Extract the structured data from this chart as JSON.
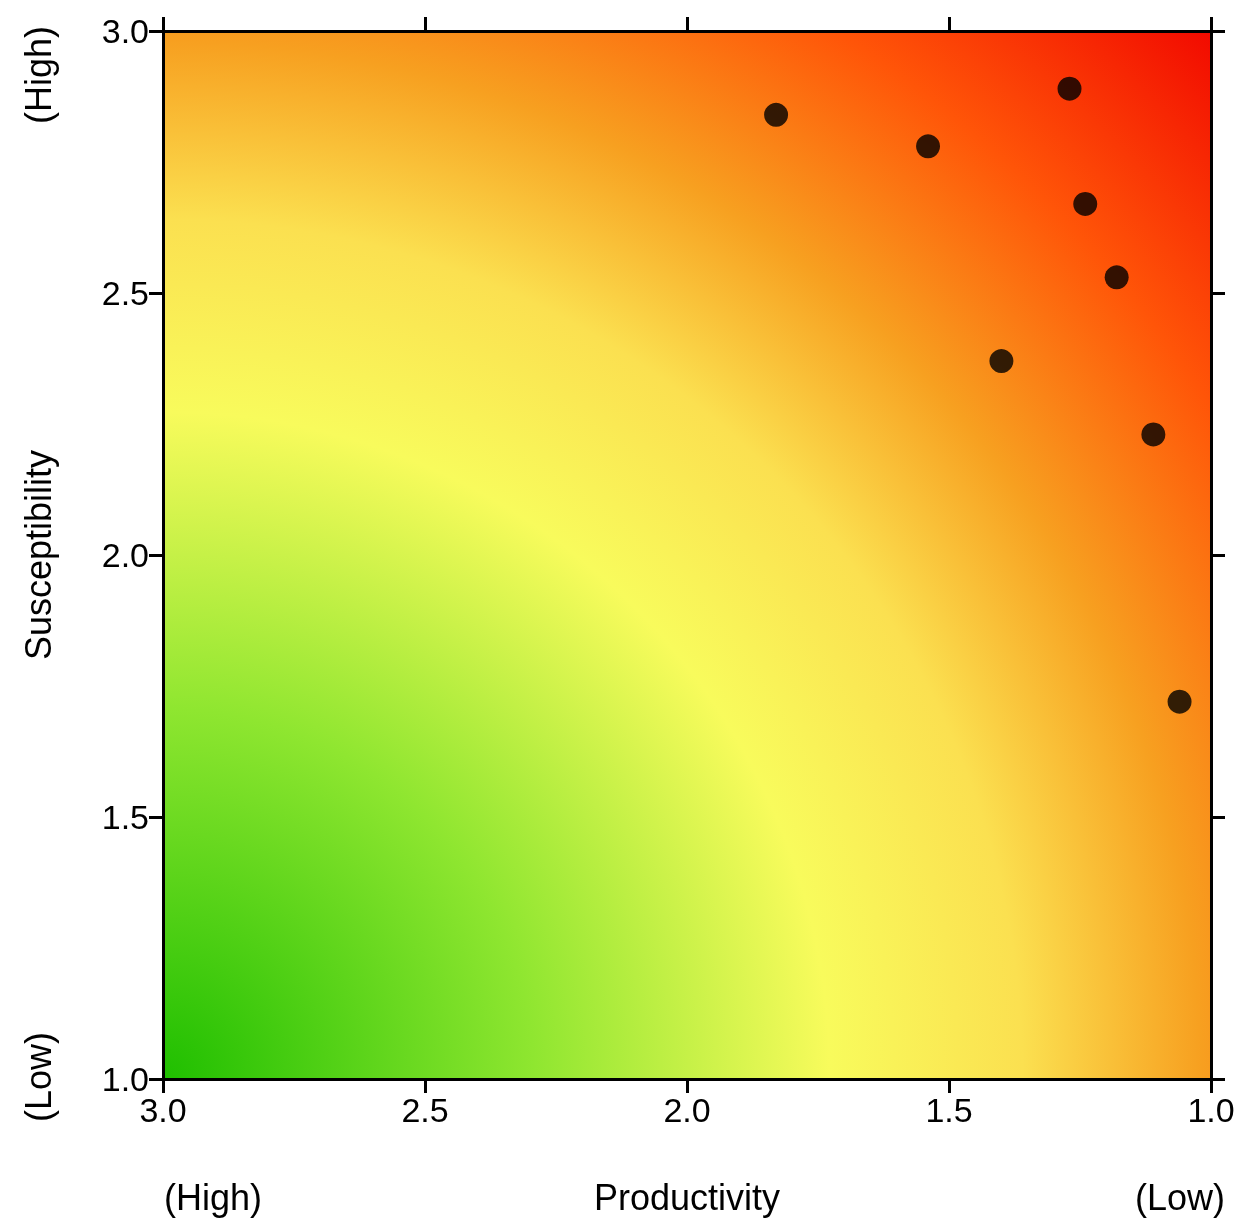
{
  "chart_data": {
    "type": "scatter",
    "xlabel": "Productivity",
    "ylabel": "Susceptibility",
    "x": [
      1.83,
      1.54,
      1.27,
      1.24,
      1.18,
      1.4,
      1.11,
      1.06
    ],
    "series": [
      {
        "color": "#000000",
        "values": [
          2.84,
          2.78,
          2.89,
          2.67,
          2.53,
          2.37,
          2.23,
          1.72
        ]
      }
    ],
    "xlim": [
      3.0,
      1.0
    ],
    "xticks": [
      {
        "value": 3.0,
        "label": "3.0"
      },
      {
        "value": 2.5,
        "label": "2.5"
      },
      {
        "value": 2.0,
        "label": "2.0"
      },
      {
        "value": 1.5,
        "label": "1.5"
      },
      {
        "value": 1.0,
        "label": "1.0"
      }
    ],
    "ylim": [
      1.0,
      3.0
    ],
    "yticks": [
      {
        "value": 1.0,
        "label": "1.0"
      },
      {
        "value": 1.5,
        "label": "1.5"
      },
      {
        "value": 2.0,
        "label": "2.0"
      },
      {
        "value": 2.5,
        "label": "2.5"
      },
      {
        "value": 3.0,
        "label": "3.0"
      }
    ],
    "annotations": [
      "(High)",
      "(Low)",
      "(High)",
      "(Low)"
    ],
    "marker": "circle",
    "grid": false
  }
}
